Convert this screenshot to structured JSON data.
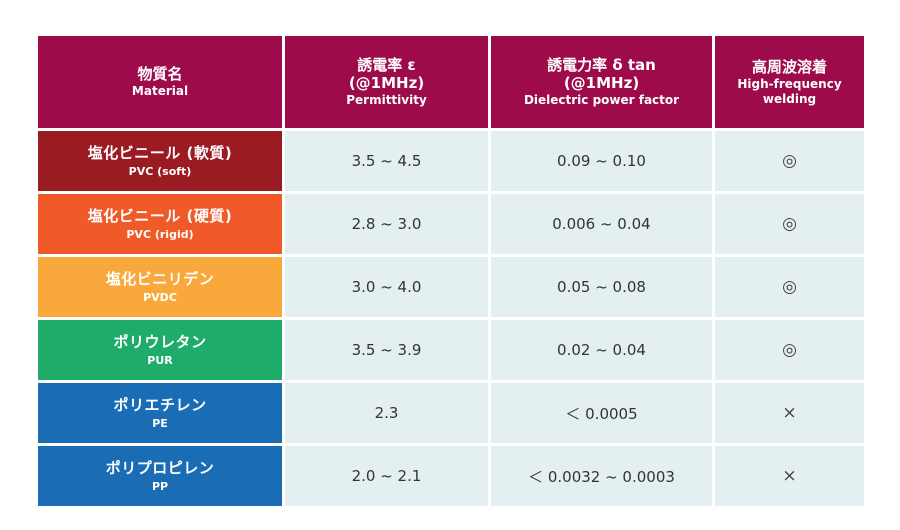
{
  "header": {
    "material": {
      "main": "物質名",
      "sub": "Material"
    },
    "permittivity": {
      "main": "誘電率 ε",
      "main2": "(@1MHz)",
      "sub": "Permittivity"
    },
    "power_factor": {
      "main": "誘電力率 δ tan",
      "main2": "(@1MHz)",
      "sub": "Dielectric power factor"
    },
    "welding": {
      "main": "高周波溶着",
      "sub": "High-frequency",
      "sub2": "welding"
    }
  },
  "rows": [
    {
      "name_jp": "塩化ビニール (軟質)",
      "name_en": "PVC (soft)",
      "permittivity": "3.5 ~ 4.5",
      "power_factor": "0.09 ~ 0.10",
      "welding": "◎",
      "color": "#9b1b22"
    },
    {
      "name_jp": "塩化ビニール (硬質)",
      "name_en": "PVC (rigid)",
      "permittivity": "2.8 ~ 3.0",
      "power_factor": "0.006 ~ 0.04",
      "welding": "◎",
      "color": "#ef5a28"
    },
    {
      "name_jp": "塩化ビニリデン",
      "name_en": "PVDC",
      "permittivity": "3.0 ~ 4.0",
      "power_factor": "0.05 ~ 0.08",
      "welding": "◎",
      "color": "#f9a93c"
    },
    {
      "name_jp": "ポリウレタン",
      "name_en": "PUR",
      "permittivity": "3.5 ~ 3.9",
      "power_factor": "0.02 ~ 0.04",
      "welding": "◎",
      "color": "#1fac6a"
    },
    {
      "name_jp": "ポリエチレン",
      "name_en": "PE",
      "permittivity": "2.3",
      "power_factor": "＜ 0.0005",
      "welding": "×",
      "color": "#1a6db5"
    },
    {
      "name_jp": "ポリプロピレン",
      "name_en": "PP",
      "permittivity": "2.0 ~ 2.1",
      "power_factor": "＜ 0.0032 ~ 0.0003",
      "welding": "×",
      "color": "#1a6db5"
    }
  ]
}
